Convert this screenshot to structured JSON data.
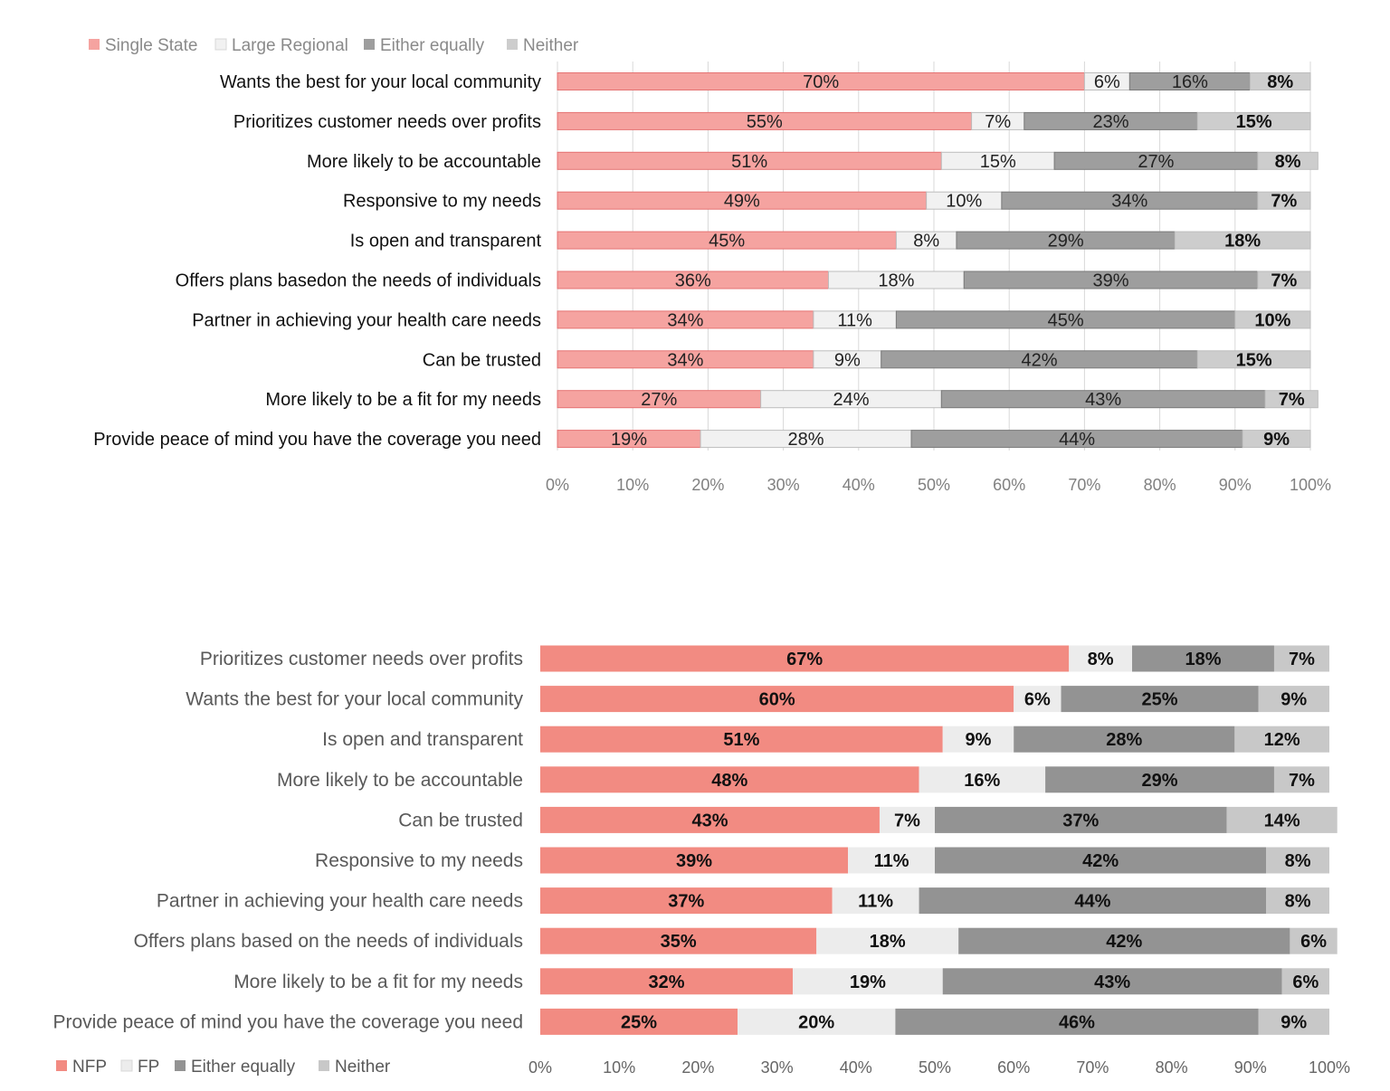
{
  "chart_data": [
    {
      "type": "bar",
      "orientation": "horizontal",
      "stacked": true,
      "percent": true,
      "legend_position": "top-left",
      "grid": true,
      "xlim": [
        0,
        100
      ],
      "xticks": [
        "0%",
        "10%",
        "20%",
        "30%",
        "40%",
        "50%",
        "60%",
        "70%",
        "80%",
        "90%",
        "100%"
      ],
      "categories": [
        "Wants the best for your local community",
        "Prioritizes customer needs over profits",
        "More likely to be accountable",
        "Responsive to my needs",
        "Is open and transparent",
        "Offers plans basedon the needs of individuals",
        "Partner in achieving your health care needs",
        "Can be trusted",
        "More likely to be a fit for my needs",
        "Provide peace of mind you have the coverage you need"
      ],
      "series": [
        {
          "name": "Single State",
          "color": "#f5a3a0",
          "values": [
            70,
            55,
            51,
            49,
            45,
            36,
            34,
            34,
            27,
            19
          ],
          "labels": [
            "70%",
            "55%",
            "51%",
            "49%",
            "45%",
            "36%",
            "34%",
            "34%",
            "27%",
            "19%"
          ]
        },
        {
          "name": "Large Regional",
          "color": "#f1f1f1",
          "values": [
            6,
            7,
            15,
            10,
            8,
            18,
            11,
            9,
            24,
            28
          ],
          "labels": [
            "6%",
            "7%",
            "15%",
            "10%",
            "8%",
            "18%",
            "11%",
            "9%",
            "24%",
            "28%"
          ]
        },
        {
          "name": "Either equally",
          "color": "#9e9e9e",
          "values": [
            16,
            23,
            27,
            34,
            29,
            39,
            45,
            42,
            43,
            44
          ],
          "labels": [
            "16%",
            "23%",
            "27%",
            "34%",
            "29%",
            "39%",
            "45%",
            "42%",
            "43%",
            "44%"
          ]
        },
        {
          "name": "Neither",
          "color": "#cdcdcd",
          "values": [
            8,
            15,
            8,
            7,
            18,
            7,
            10,
            15,
            7,
            9
          ],
          "labels": [
            "8%",
            "15%",
            "8%",
            "7%",
            "18%",
            "7%",
            "10%",
            "15%",
            "7%",
            "9%"
          ]
        }
      ]
    },
    {
      "type": "bar",
      "orientation": "horizontal",
      "stacked": true,
      "percent": true,
      "legend_position": "bottom-left",
      "grid": false,
      "xlim": [
        0,
        100
      ],
      "xticks": [
        "0%",
        "10%",
        "20%",
        "30%",
        "40%",
        "50%",
        "60%",
        "70%",
        "80%",
        "90%",
        "100%"
      ],
      "categories": [
        "Prioritizes customer needs over profits",
        "Wants the best for your local community",
        "Is open and transparent",
        "More likely to be accountable",
        "Can be trusted",
        "Responsive to my needs",
        "Partner in achieving your health care needs",
        "Offers plans based on the needs of individuals",
        "More likely to be a fit for my needs",
        "Provide peace of mind you have the coverage you need"
      ],
      "series": [
        {
          "name": "NFP",
          "color": "#f28b82",
          "values": [
            67,
            60,
            51,
            48,
            43,
            39,
            37,
            35,
            32,
            25
          ],
          "labels": [
            "67%",
            "60%",
            "51%",
            "48%",
            "43%",
            "39%",
            "37%",
            "35%",
            "32%",
            "25%"
          ]
        },
        {
          "name": "FP",
          "color": "#ececec",
          "values": [
            8,
            6,
            9,
            16,
            7,
            11,
            11,
            18,
            19,
            20
          ],
          "labels": [
            "8%",
            "6%",
            "9%",
            "16%",
            "7%",
            "11%",
            "11%",
            "18%",
            "19%",
            "20%"
          ]
        },
        {
          "name": "Either equally",
          "color": "#939393",
          "values": [
            18,
            25,
            28,
            29,
            37,
            42,
            44,
            42,
            43,
            46
          ],
          "labels": [
            "18%",
            "25%",
            "28%",
            "29%",
            "37%",
            "42%",
            "44%",
            "42%",
            "43%",
            "46%"
          ]
        },
        {
          "name": "Neither",
          "color": "#c8c8c8",
          "values": [
            7,
            9,
            12,
            7,
            14,
            8,
            8,
            6,
            6,
            9
          ],
          "labels": [
            "7%",
            "9%",
            "12%",
            "7%",
            "14%",
            "8%",
            "8%",
            "6%",
            "6%",
            "9%"
          ]
        }
      ]
    }
  ]
}
